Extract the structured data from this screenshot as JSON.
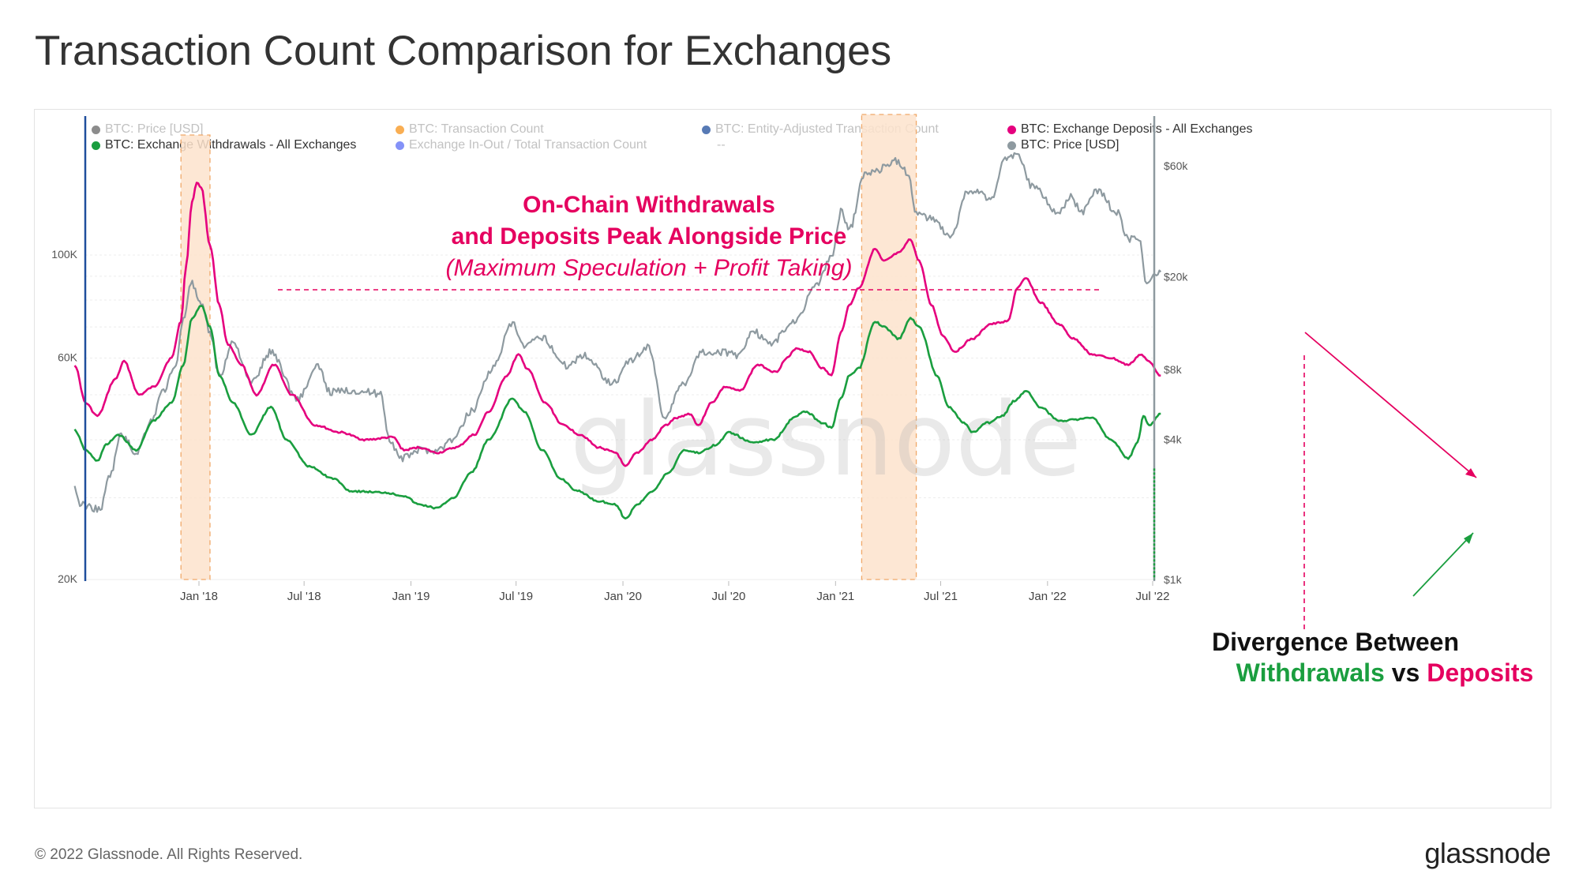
{
  "title": "Transaction Count Comparison for Exchanges",
  "footer": {
    "copyright": "© 2022 Glassnode. All Rights Reserved.",
    "logo": "glassnode"
  },
  "watermark": "glassnode",
  "legend": [
    {
      "label": "BTC: Price [USD]",
      "color": "#666666",
      "active": false
    },
    {
      "label": "BTC: Transaction Count",
      "color": "#f7931a",
      "active": false
    },
    {
      "label": "BTC: Entity-Adjusted Transaction Count",
      "color": "#1f4e9c",
      "active": false
    },
    {
      "label": "BTC: Exchange Deposits - All Exchanges",
      "color": "#e5007e",
      "active": true
    },
    {
      "label": "BTC: Exchange Withdrawals - All Exchanges",
      "color": "#1a9e3f",
      "active": true
    },
    {
      "label": "Exchange In-Out / Total Transaction Count",
      "color": "#5b6ef5",
      "active": false
    },
    {
      "label": "--",
      "color": "",
      "active": false
    },
    {
      "label": "BTC: Price [USD]",
      "color": "#8e9aa0",
      "active": true
    }
  ],
  "annotations": {
    "peak_line1": "On-Chain Withdrawals",
    "peak_line2": "and Deposits Peak Alongside Price",
    "peak_line3": "(Maximum Speculation + Profit Taking)",
    "divergence_line1": "Divergence Between",
    "divergence_withdrawals": "Withdrawals",
    "divergence_vs": "vs",
    "divergence_deposits": "Deposits"
  },
  "colors": {
    "deposits": "#e5007e",
    "withdrawals": "#1a9e3f",
    "price": "#8e9aa0",
    "highlight": "#fde3cc",
    "highlight_border": "#f0a868",
    "annotation": "#e5005f"
  },
  "chart_data": {
    "type": "line",
    "x_ticks": [
      "Jan '18",
      "Jul '18",
      "Jan '19",
      "Jul '19",
      "Jan '20",
      "Jul '20",
      "Jan '21",
      "Jul '21",
      "Jan '22",
      "Jul '22"
    ],
    "y_left": {
      "scale": "log",
      "ticks": [
        "20K",
        "60K",
        "100K"
      ]
    },
    "y_right": {
      "scale": "log",
      "ticks": [
        "$1k",
        "$4k",
        "$8k",
        "$20k",
        "$60k"
      ]
    },
    "highlight_periods": [
      [
        "2017-12-01",
        "2018-01-20"
      ],
      [
        "2021-02-15",
        "2021-05-20"
      ]
    ],
    "series": [
      {
        "name": "BTC: Exchange Deposits - All Exchanges",
        "axis": "left",
        "points": [
          [
            "2017-06-01",
            58000
          ],
          [
            "2017-06-20",
            48000
          ],
          [
            "2017-07-10",
            45000
          ],
          [
            "2017-08-10",
            54000
          ],
          [
            "2017-08-25",
            59000
          ],
          [
            "2017-09-20",
            50000
          ],
          [
            "2017-10-15",
            52000
          ],
          [
            "2017-11-15",
            60000
          ],
          [
            "2017-12-01",
            72000
          ],
          [
            "2017-12-10",
            95000
          ],
          [
            "2017-12-20",
            130000
          ],
          [
            "2017-12-28",
            143000
          ],
          [
            "2018-01-05",
            140000
          ],
          [
            "2018-01-20",
            105000
          ],
          [
            "2018-02-05",
            78000
          ],
          [
            "2018-02-20",
            64000
          ],
          [
            "2018-03-15",
            58000
          ],
          [
            "2018-04-10",
            50000
          ],
          [
            "2018-05-10",
            58000
          ],
          [
            "2018-06-10",
            50000
          ],
          [
            "2018-07-20",
            43000
          ],
          [
            "2018-09-01",
            41500
          ],
          [
            "2018-10-15",
            40000
          ],
          [
            "2018-12-01",
            40500
          ],
          [
            "2018-12-20",
            38000
          ],
          [
            "2019-01-15",
            38500
          ],
          [
            "2019-02-15",
            37500
          ],
          [
            "2019-03-20",
            38500
          ],
          [
            "2019-04-20",
            41000
          ],
          [
            "2019-05-15",
            46000
          ],
          [
            "2019-06-15",
            55000
          ],
          [
            "2019-07-05",
            61000
          ],
          [
            "2019-07-20",
            57000
          ],
          [
            "2019-08-20",
            48000
          ],
          [
            "2019-09-20",
            43000
          ],
          [
            "2019-10-20",
            41000
          ],
          [
            "2019-11-20",
            38500
          ],
          [
            "2019-12-20",
            37500
          ],
          [
            "2020-01-05",
            35000
          ],
          [
            "2020-01-25",
            37500
          ],
          [
            "2020-02-20",
            40000
          ],
          [
            "2020-03-15",
            43000
          ],
          [
            "2020-04-01",
            44500
          ],
          [
            "2020-04-25",
            45500
          ],
          [
            "2020-05-10",
            43000
          ],
          [
            "2020-06-01",
            48000
          ],
          [
            "2020-06-25",
            52000
          ],
          [
            "2020-07-20",
            51000
          ],
          [
            "2020-08-20",
            58000
          ],
          [
            "2020-09-20",
            56000
          ],
          [
            "2020-10-10",
            60000
          ],
          [
            "2020-10-25",
            63000
          ],
          [
            "2020-11-15",
            62000
          ],
          [
            "2020-12-10",
            57000
          ],
          [
            "2020-12-25",
            55000
          ],
          [
            "2021-01-10",
            68000
          ],
          [
            "2021-01-25",
            78000
          ],
          [
            "2021-02-10",
            85000
          ],
          [
            "2021-03-10",
            103000
          ],
          [
            "2021-03-25",
            97000
          ],
          [
            "2021-04-20",
            101000
          ],
          [
            "2021-05-10",
            108000
          ],
          [
            "2021-05-25",
            97000
          ],
          [
            "2021-06-15",
            78000
          ],
          [
            "2021-07-05",
            67000
          ],
          [
            "2021-07-25",
            62000
          ],
          [
            "2021-08-25",
            66000
          ],
          [
            "2021-09-25",
            71000
          ],
          [
            "2021-10-25",
            72000
          ],
          [
            "2021-11-10",
            85000
          ],
          [
            "2021-11-25",
            89000
          ],
          [
            "2021-12-20",
            79000
          ],
          [
            "2022-01-20",
            71000
          ],
          [
            "2022-02-15",
            66000
          ],
          [
            "2022-03-20",
            61000
          ],
          [
            "2022-04-20",
            60000
          ],
          [
            "2022-05-20",
            58000
          ],
          [
            "2022-06-10",
            61000
          ],
          [
            "2022-06-25",
            59000
          ],
          [
            "2022-07-15",
            55000
          ]
        ]
      },
      {
        "name": "BTC: Exchange Withdrawals - All Exchanges",
        "axis": "left",
        "points": [
          [
            "2017-06-01",
            42000
          ],
          [
            "2017-06-20",
            38000
          ],
          [
            "2017-07-10",
            36000
          ],
          [
            "2017-07-25",
            39000
          ],
          [
            "2017-08-15",
            41000
          ],
          [
            "2017-09-15",
            38000
          ],
          [
            "2017-10-15",
            44000
          ],
          [
            "2017-11-15",
            48000
          ],
          [
            "2017-12-05",
            58000
          ],
          [
            "2017-12-20",
            73000
          ],
          [
            "2018-01-05",
            78000
          ],
          [
            "2018-01-20",
            70000
          ],
          [
            "2018-02-05",
            55000
          ],
          [
            "2018-03-01",
            48000
          ],
          [
            "2018-04-01",
            41000
          ],
          [
            "2018-05-05",
            47000
          ],
          [
            "2018-06-01",
            40000
          ],
          [
            "2018-07-10",
            35000
          ],
          [
            "2018-08-20",
            33000
          ],
          [
            "2018-09-20",
            31000
          ],
          [
            "2018-11-15",
            30800
          ],
          [
            "2018-12-20",
            30300
          ],
          [
            "2019-01-15",
            29000
          ],
          [
            "2019-02-15",
            28500
          ],
          [
            "2019-03-15",
            30000
          ],
          [
            "2019-04-15",
            34000
          ],
          [
            "2019-05-15",
            40000
          ],
          [
            "2019-06-25",
            49000
          ],
          [
            "2019-07-15",
            46000
          ],
          [
            "2019-08-15",
            38000
          ],
          [
            "2019-09-15",
            33000
          ],
          [
            "2019-10-15",
            31000
          ],
          [
            "2019-11-20",
            29500
          ],
          [
            "2019-12-20",
            29000
          ],
          [
            "2020-01-05",
            27000
          ],
          [
            "2020-01-25",
            29000
          ],
          [
            "2020-02-20",
            31000
          ],
          [
            "2020-03-20",
            34000
          ],
          [
            "2020-04-15",
            38000
          ],
          [
            "2020-05-10",
            37500
          ],
          [
            "2020-06-10",
            39000
          ],
          [
            "2020-07-01",
            41500
          ],
          [
            "2020-08-10",
            39500
          ],
          [
            "2020-09-15",
            40000
          ],
          [
            "2020-10-25",
            45000
          ],
          [
            "2020-11-10",
            46000
          ],
          [
            "2020-12-10",
            43500
          ],
          [
            "2020-12-25",
            42500
          ],
          [
            "2021-01-10",
            49000
          ],
          [
            "2021-01-25",
            55000
          ],
          [
            "2021-02-10",
            57000
          ],
          [
            "2021-03-10",
            72000
          ],
          [
            "2021-03-25",
            70000
          ],
          [
            "2021-04-20",
            66000
          ],
          [
            "2021-05-10",
            73000
          ],
          [
            "2021-05-25",
            70000
          ],
          [
            "2021-06-25",
            55000
          ],
          [
            "2021-07-15",
            47000
          ],
          [
            "2021-08-10",
            43500
          ],
          [
            "2021-08-25",
            41500
          ],
          [
            "2021-09-20",
            43500
          ],
          [
            "2021-10-15",
            45000
          ],
          [
            "2021-11-05",
            48500
          ],
          [
            "2021-11-25",
            51000
          ],
          [
            "2021-12-20",
            47000
          ],
          [
            "2022-01-20",
            44000
          ],
          [
            "2022-03-20",
            44500
          ],
          [
            "2022-04-20",
            40000
          ],
          [
            "2022-05-20",
            36500
          ],
          [
            "2022-06-05",
            39500
          ],
          [
            "2022-06-15",
            45000
          ],
          [
            "2022-06-25",
            43000
          ],
          [
            "2022-07-15",
            45500
          ]
        ]
      },
      {
        "name": "BTC: Price [USD]",
        "axis": "right",
        "points": [
          [
            "2017-06-01",
            2500
          ],
          [
            "2017-06-10",
            2100
          ],
          [
            "2017-07-15",
            2000
          ],
          [
            "2017-08-01",
            2800
          ],
          [
            "2017-08-20",
            4200
          ],
          [
            "2017-09-15",
            3500
          ],
          [
            "2017-10-10",
            4800
          ],
          [
            "2017-11-01",
            6500
          ],
          [
            "2017-11-20",
            8000
          ],
          [
            "2017-12-05",
            13000
          ],
          [
            "2017-12-18",
            19000
          ],
          [
            "2018-01-05",
            15000
          ],
          [
            "2018-01-20",
            11500
          ],
          [
            "2018-02-05",
            7500
          ],
          [
            "2018-03-01",
            10500
          ],
          [
            "2018-04-01",
            7000
          ],
          [
            "2018-05-05",
            9500
          ],
          [
            "2018-06-20",
            6000
          ],
          [
            "2018-07-25",
            8200
          ],
          [
            "2018-08-15",
            6400
          ],
          [
            "2018-09-20",
            6500
          ],
          [
            "2018-11-10",
            6300
          ],
          [
            "2018-11-25",
            4000
          ],
          [
            "2018-12-15",
            3300
          ],
          [
            "2019-01-15",
            3600
          ],
          [
            "2019-02-15",
            3600
          ],
          [
            "2019-03-15",
            4000
          ],
          [
            "2019-04-15",
            5300
          ],
          [
            "2019-05-20",
            8000
          ],
          [
            "2019-06-25",
            12500
          ],
          [
            "2019-07-15",
            10000
          ],
          [
            "2019-08-15",
            11000
          ],
          [
            "2019-09-25",
            8300
          ],
          [
            "2019-10-25",
            9200
          ],
          [
            "2019-12-15",
            7000
          ],
          [
            "2020-01-15",
            8800
          ],
          [
            "2020-02-15",
            10000
          ],
          [
            "2020-03-12",
            5000
          ],
          [
            "2020-04-15",
            7000
          ],
          [
            "2020-05-15",
            9500
          ],
          [
            "2020-06-15",
            9500
          ],
          [
            "2020-07-20",
            9200
          ],
          [
            "2020-08-10",
            11800
          ],
          [
            "2020-09-10",
            10300
          ],
          [
            "2020-10-25",
            13000
          ],
          [
            "2020-11-25",
            18000
          ],
          [
            "2020-12-25",
            24000
          ],
          [
            "2021-01-10",
            38000
          ],
          [
            "2021-01-25",
            32000
          ],
          [
            "2021-02-20",
            55000
          ],
          [
            "2021-03-10",
            57000
          ],
          [
            "2021-04-14",
            63000
          ],
          [
            "2021-05-05",
            56000
          ],
          [
            "2021-05-20",
            38000
          ],
          [
            "2021-06-10",
            36000
          ],
          [
            "2021-07-20",
            30000
          ],
          [
            "2021-08-15",
            46000
          ],
          [
            "2021-09-10",
            46000
          ],
          [
            "2021-09-25",
            42000
          ],
          [
            "2021-10-20",
            64000
          ],
          [
            "2021-11-10",
            68000
          ],
          [
            "2021-12-05",
            49000
          ],
          [
            "2022-01-20",
            38000
          ],
          [
            "2022-02-10",
            44000
          ],
          [
            "2022-03-01",
            38000
          ],
          [
            "2022-03-28",
            47000
          ],
          [
            "2022-04-30",
            38000
          ],
          [
            "2022-05-20",
            29000
          ],
          [
            "2022-06-10",
            29000
          ],
          [
            "2022-06-18",
            19000
          ],
          [
            "2022-07-05",
            20000
          ],
          [
            "2022-07-15",
            21000
          ]
        ]
      }
    ]
  }
}
